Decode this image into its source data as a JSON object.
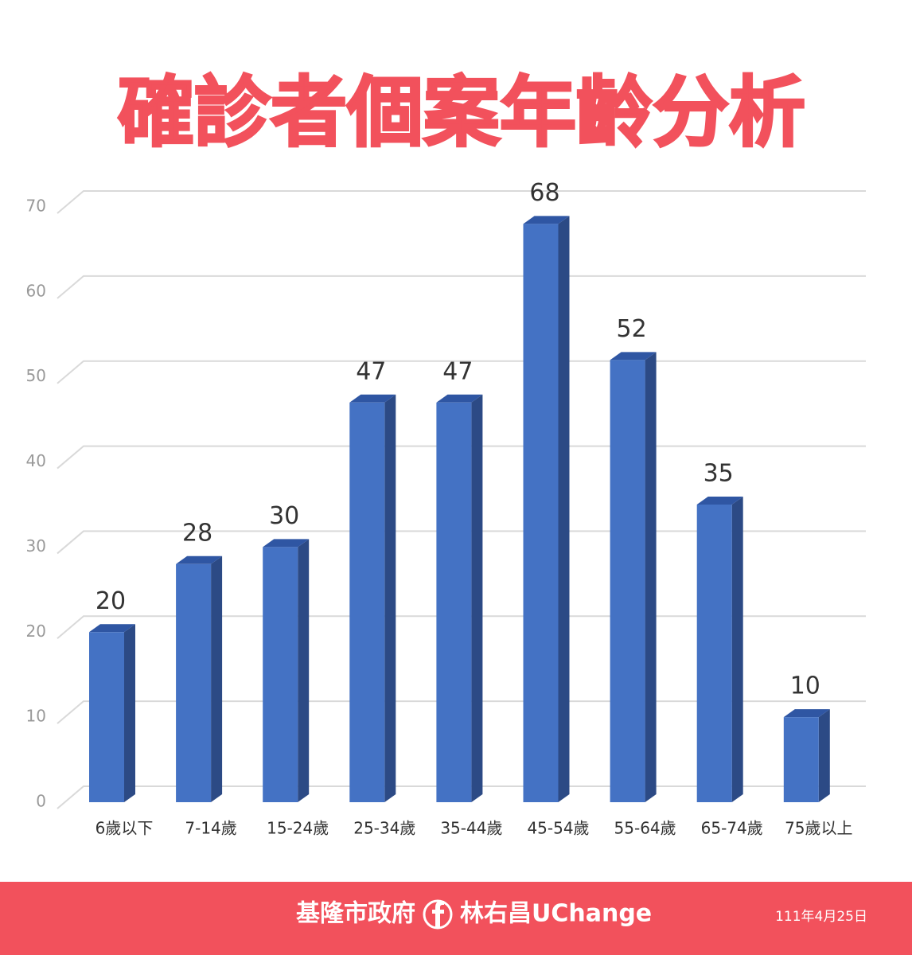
{
  "chart_data": {
    "type": "bar",
    "title": "確診者個案年齡分析",
    "categories": [
      "6歲以下",
      "7-14歲",
      "15-24歲",
      "25-34歲",
      "35-44歲",
      "45-54歲",
      "55-64歲",
      "65-74歲",
      "75歲以上"
    ],
    "values": [
      20,
      28,
      30,
      47,
      47,
      68,
      52,
      35,
      10
    ],
    "color": "#4472c4",
    "ylim": [
      0,
      70
    ],
    "yticks": [
      0,
      10,
      20,
      30,
      40,
      50,
      60,
      70
    ],
    "grid": true
  },
  "footer": {
    "source": "基隆市政府",
    "page": "林右昌UChange",
    "date": "111年4月25日"
  }
}
